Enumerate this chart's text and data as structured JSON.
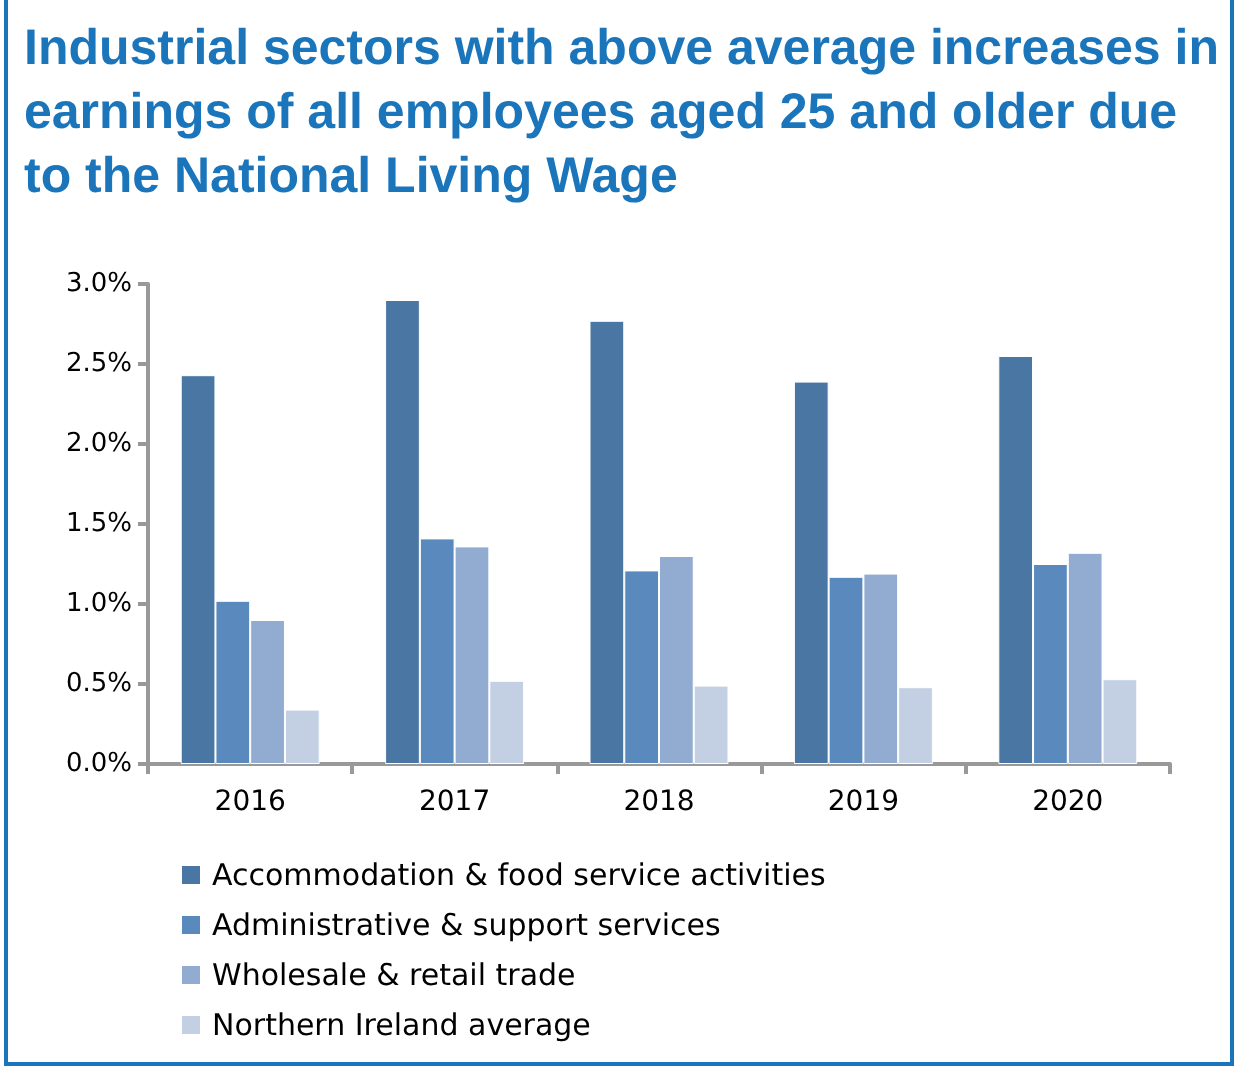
{
  "chart_data": {
    "type": "bar",
    "title": "Industrial sectors with above average increases in earnings of all employees aged 25 and older due to the National Living Wage",
    "categories": [
      "2016",
      "2017",
      "2018",
      "2019",
      "2020"
    ],
    "series": [
      {
        "name": "Accommodation & food service activities",
        "color": "#4a76a3",
        "values": [
          2.43,
          2.9,
          2.77,
          2.39,
          2.55
        ]
      },
      {
        "name": "Administrative & support services",
        "color": "#5a8abd",
        "values": [
          1.02,
          1.41,
          1.21,
          1.17,
          1.25
        ]
      },
      {
        "name": "Wholesale & retail trade",
        "color": "#91abd1",
        "values": [
          0.9,
          1.36,
          1.3,
          1.19,
          1.32
        ]
      },
      {
        "name": "Northern Ireland average",
        "color": "#c3cfe2",
        "values": [
          0.34,
          0.52,
          0.49,
          0.48,
          0.53
        ]
      }
    ],
    "ylim": [
      0,
      3
    ],
    "yticks": [
      {
        "value": 0,
        "label": "0.0%"
      },
      {
        "value": 0.5,
        "label": "0.5%"
      },
      {
        "value": 1,
        "label": "1.0%"
      },
      {
        "value": 1.5,
        "label": "1.5%"
      },
      {
        "value": 2,
        "label": "2.0%"
      },
      {
        "value": 2.5,
        "label": "2.5%"
      },
      {
        "value": 3,
        "label": "3.0%"
      }
    ],
    "grid": false,
    "legend": "bottom"
  }
}
